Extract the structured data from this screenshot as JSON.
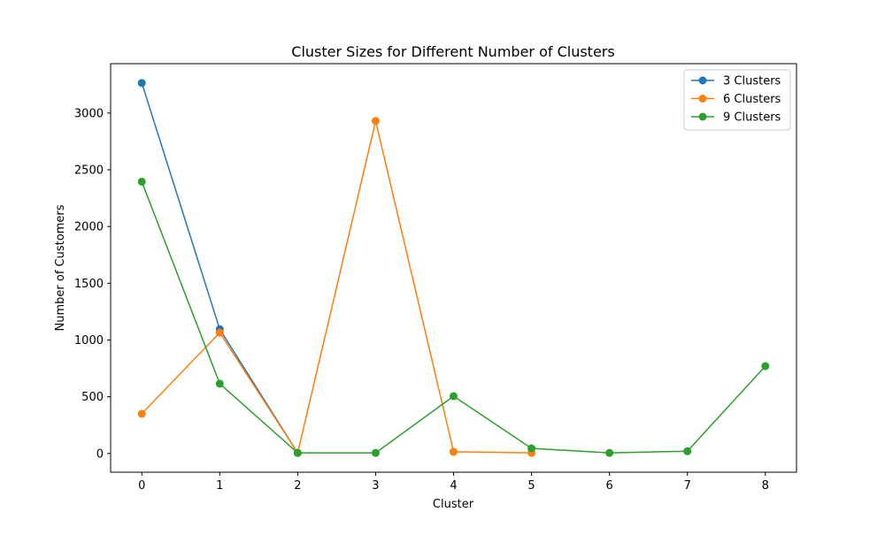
{
  "chart_data": {
    "type": "line",
    "title": "Cluster Sizes for Different Number of Clusters",
    "xlabel": "Cluster",
    "ylabel": "Number of Customers",
    "xlim": [
      -0.4,
      8.4
    ],
    "ylim": [
      -165,
      3435
    ],
    "xticks": [
      0,
      1,
      2,
      3,
      4,
      5,
      6,
      7,
      8
    ],
    "yticks": [
      0,
      500,
      1000,
      1500,
      2000,
      2500,
      3000
    ],
    "grid": false,
    "legend_position": "top-right",
    "series": [
      {
        "name": "3 Clusters",
        "color": "#1f77b4",
        "x": [
          0,
          1,
          2
        ],
        "values": [
          3265,
          1095,
          5
        ]
      },
      {
        "name": "6 Clusters",
        "color": "#ff7f0e",
        "x": [
          0,
          1,
          2,
          3,
          4,
          5
        ],
        "values": [
          350,
          1065,
          5,
          2930,
          15,
          5
        ]
      },
      {
        "name": "9 Clusters",
        "color": "#2ca02c",
        "x": [
          0,
          1,
          2,
          3,
          4,
          5,
          6,
          7,
          8
        ],
        "values": [
          2395,
          615,
          5,
          5,
          505,
          45,
          5,
          20,
          770
        ]
      }
    ]
  }
}
